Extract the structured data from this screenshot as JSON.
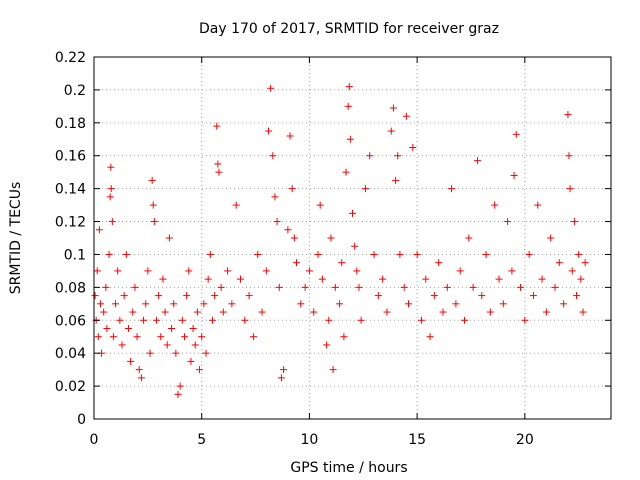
{
  "chart_data": {
    "type": "scatter",
    "title": "Day 170 of 2017, SRMTID for receiver graz",
    "xlabel": "GPS time / hours",
    "ylabel": "SRMTID / TECUs",
    "xlim": [
      0,
      24
    ],
    "ylim": [
      0,
      0.22
    ],
    "x_ticks": [
      0,
      5,
      10,
      15,
      20
    ],
    "x_tick_labels": [
      "0",
      "5",
      "10",
      "15",
      "20"
    ],
    "y_ticks": [
      0,
      0.02,
      0.04,
      0.06,
      0.08,
      0.1,
      0.12,
      0.14,
      0.16,
      0.18,
      0.2,
      0.22
    ],
    "y_tick_labels": [
      "0",
      "0.02",
      "0.04",
      "0.06",
      "0.08",
      "0.1",
      "0.12",
      "0.14",
      "0.16",
      "0.18",
      "0.2",
      "0.22"
    ],
    "grid": true,
    "marker": "plus",
    "series": [
      {
        "name": "SRMTID",
        "color": "#ff0000",
        "points": [
          [
            0.05,
            0.075
          ],
          [
            0.1,
            0.06
          ],
          [
            0.15,
            0.09
          ],
          [
            0.2,
            0.05
          ],
          [
            0.25,
            0.115
          ],
          [
            0.3,
            0.07
          ],
          [
            0.35,
            0.04
          ],
          [
            0.45,
            0.065
          ],
          [
            0.55,
            0.08
          ],
          [
            0.6,
            0.055
          ],
          [
            0.7,
            0.1
          ],
          [
            0.75,
            0.135
          ],
          [
            0.78,
            0.153
          ],
          [
            0.8,
            0.14
          ],
          [
            0.85,
            0.12
          ],
          [
            0.9,
            0.05
          ],
          [
            1.0,
            0.07
          ],
          [
            1.1,
            0.09
          ],
          [
            1.2,
            0.06
          ],
          [
            1.3,
            0.045
          ],
          [
            1.4,
            0.075
          ],
          [
            1.5,
            0.1
          ],
          [
            1.6,
            0.055
          ],
          [
            1.7,
            0.035
          ],
          [
            1.8,
            0.065
          ],
          [
            1.9,
            0.08
          ],
          [
            2.0,
            0.05
          ],
          [
            2.1,
            0.03
          ],
          [
            2.2,
            0.025
          ],
          [
            2.3,
            0.06
          ],
          [
            2.4,
            0.07
          ],
          [
            2.5,
            0.09
          ],
          [
            2.6,
            0.04
          ],
          [
            2.7,
            0.145
          ],
          [
            2.75,
            0.13
          ],
          [
            2.8,
            0.12
          ],
          [
            2.9,
            0.06
          ],
          [
            3.0,
            0.075
          ],
          [
            3.1,
            0.05
          ],
          [
            3.2,
            0.085
          ],
          [
            3.3,
            0.065
          ],
          [
            3.4,
            0.045
          ],
          [
            3.5,
            0.11
          ],
          [
            3.6,
            0.055
          ],
          [
            3.7,
            0.07
          ],
          [
            3.8,
            0.04
          ],
          [
            3.9,
            0.015
          ],
          [
            4.0,
            0.02
          ],
          [
            4.1,
            0.06
          ],
          [
            4.2,
            0.05
          ],
          [
            4.3,
            0.075
          ],
          [
            4.4,
            0.09
          ],
          [
            4.5,
            0.035
          ],
          [
            4.6,
            0.055
          ],
          [
            4.7,
            0.045
          ],
          [
            4.8,
            0.065
          ],
          [
            4.9,
            0.03
          ],
          [
            5.0,
            0.05
          ],
          [
            5.1,
            0.07
          ],
          [
            5.2,
            0.04
          ],
          [
            5.3,
            0.085
          ],
          [
            5.4,
            0.1
          ],
          [
            5.5,
            0.06
          ],
          [
            5.6,
            0.075
          ],
          [
            5.7,
            0.178
          ],
          [
            5.75,
            0.155
          ],
          [
            5.8,
            0.15
          ],
          [
            5.9,
            0.08
          ],
          [
            6.0,
            0.065
          ],
          [
            6.2,
            0.09
          ],
          [
            6.4,
            0.07
          ],
          [
            6.6,
            0.13
          ],
          [
            6.8,
            0.085
          ],
          [
            7.0,
            0.06
          ],
          [
            7.2,
            0.075
          ],
          [
            7.4,
            0.05
          ],
          [
            7.6,
            0.1
          ],
          [
            7.8,
            0.065
          ],
          [
            8.0,
            0.09
          ],
          [
            8.1,
            0.175
          ],
          [
            8.2,
            0.201
          ],
          [
            8.3,
            0.16
          ],
          [
            8.4,
            0.135
          ],
          [
            8.5,
            0.12
          ],
          [
            8.6,
            0.08
          ],
          [
            8.7,
            0.025
          ],
          [
            8.8,
            0.03
          ],
          [
            9.0,
            0.115
          ],
          [
            9.1,
            0.172
          ],
          [
            9.2,
            0.14
          ],
          [
            9.3,
            0.11
          ],
          [
            9.4,
            0.095
          ],
          [
            9.6,
            0.07
          ],
          [
            9.8,
            0.08
          ],
          [
            10.0,
            0.09
          ],
          [
            10.2,
            0.065
          ],
          [
            10.4,
            0.1
          ],
          [
            10.5,
            0.13
          ],
          [
            10.6,
            0.085
          ],
          [
            10.8,
            0.045
          ],
          [
            10.9,
            0.06
          ],
          [
            11.0,
            0.11
          ],
          [
            11.1,
            0.03
          ],
          [
            11.2,
            0.08
          ],
          [
            11.4,
            0.07
          ],
          [
            11.5,
            0.095
          ],
          [
            11.6,
            0.05
          ],
          [
            11.7,
            0.15
          ],
          [
            11.8,
            0.19
          ],
          [
            11.85,
            0.202
          ],
          [
            11.9,
            0.17
          ],
          [
            12.0,
            0.125
          ],
          [
            12.1,
            0.105
          ],
          [
            12.2,
            0.09
          ],
          [
            12.3,
            0.08
          ],
          [
            12.4,
            0.06
          ],
          [
            12.6,
            0.14
          ],
          [
            12.8,
            0.16
          ],
          [
            13.0,
            0.1
          ],
          [
            13.2,
            0.075
          ],
          [
            13.4,
            0.085
          ],
          [
            13.6,
            0.065
          ],
          [
            13.8,
            0.175
          ],
          [
            13.9,
            0.189
          ],
          [
            14.0,
            0.145
          ],
          [
            14.1,
            0.16
          ],
          [
            14.2,
            0.1
          ],
          [
            14.4,
            0.08
          ],
          [
            14.5,
            0.184
          ],
          [
            14.6,
            0.07
          ],
          [
            14.8,
            0.165
          ],
          [
            15.0,
            0.1
          ],
          [
            15.2,
            0.06
          ],
          [
            15.4,
            0.085
          ],
          [
            15.6,
            0.05
          ],
          [
            15.8,
            0.075
          ],
          [
            16.0,
            0.095
          ],
          [
            16.2,
            0.065
          ],
          [
            16.4,
            0.08
          ],
          [
            16.6,
            0.14
          ],
          [
            16.8,
            0.07
          ],
          [
            17.0,
            0.09
          ],
          [
            17.2,
            0.06
          ],
          [
            17.4,
            0.11
          ],
          [
            17.6,
            0.08
          ],
          [
            17.8,
            0.157
          ],
          [
            18.0,
            0.075
          ],
          [
            18.2,
            0.1
          ],
          [
            18.4,
            0.065
          ],
          [
            18.6,
            0.13
          ],
          [
            18.8,
            0.085
          ],
          [
            19.0,
            0.07
          ],
          [
            19.2,
            0.12
          ],
          [
            19.4,
            0.09
          ],
          [
            19.5,
            0.148
          ],
          [
            19.6,
            0.173
          ],
          [
            19.8,
            0.08
          ],
          [
            20.0,
            0.06
          ],
          [
            20.2,
            0.1
          ],
          [
            20.4,
            0.075
          ],
          [
            20.6,
            0.13
          ],
          [
            20.8,
            0.085
          ],
          [
            21.0,
            0.065
          ],
          [
            21.2,
            0.11
          ],
          [
            21.4,
            0.08
          ],
          [
            21.6,
            0.095
          ],
          [
            21.8,
            0.07
          ],
          [
            22.0,
            0.185
          ],
          [
            22.05,
            0.16
          ],
          [
            22.1,
            0.14
          ],
          [
            22.2,
            0.09
          ],
          [
            22.3,
            0.12
          ],
          [
            22.4,
            0.075
          ],
          [
            22.5,
            0.1
          ],
          [
            22.6,
            0.085
          ],
          [
            22.7,
            0.065
          ],
          [
            22.8,
            0.095
          ]
        ]
      }
    ]
  }
}
